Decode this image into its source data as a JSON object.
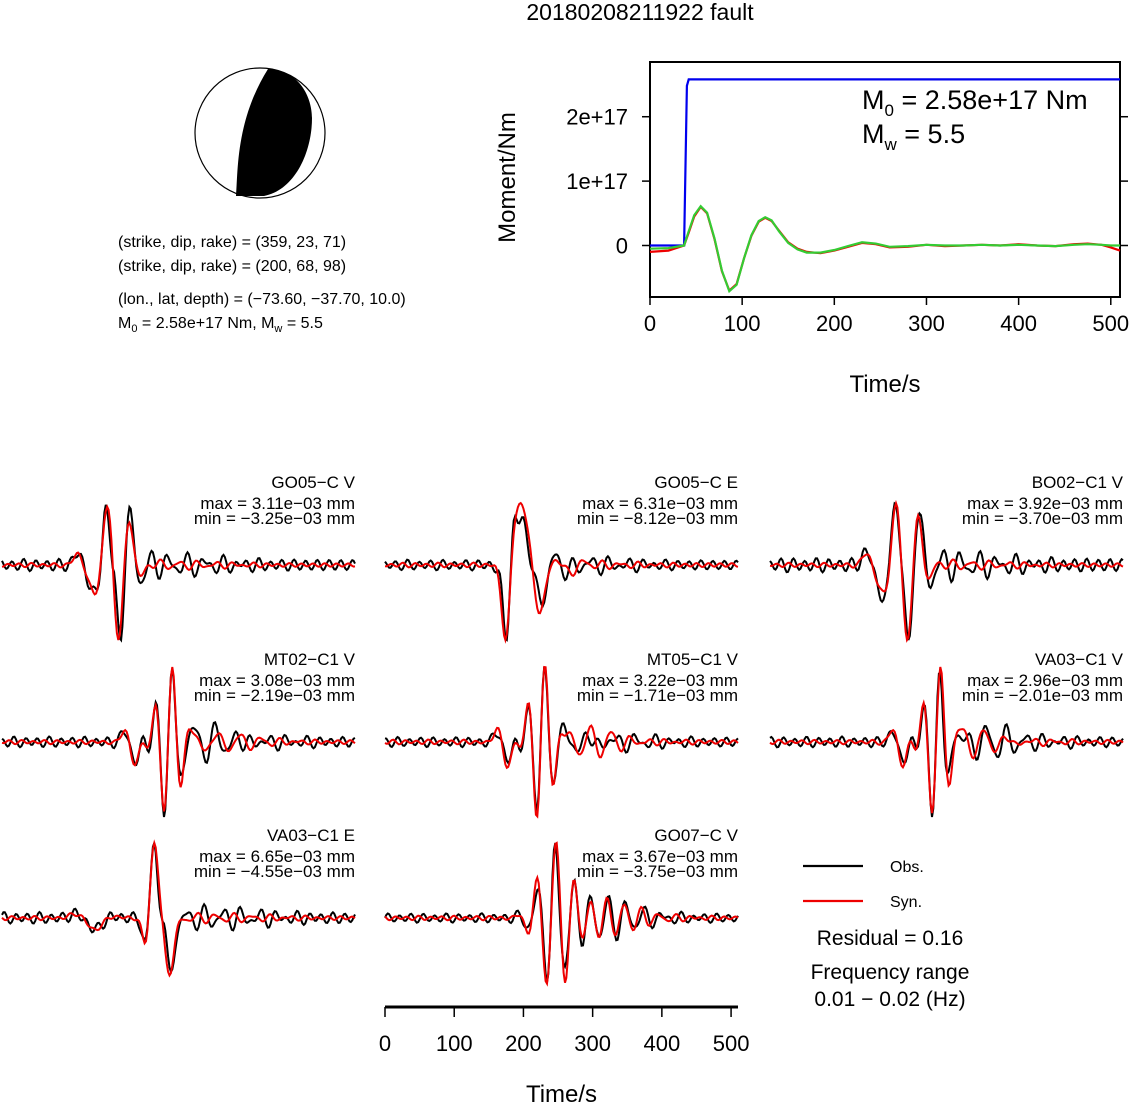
{
  "title": "20180208211922 fault",
  "mechanism": {
    "line1": "(strike, dip, rake) = (359, 23, 71)",
    "line2": "(strike, dip, rake) = (200, 68, 98)",
    "line3": "(lon., lat, depth) = (−73.60, −37.70, 10.0)",
    "line4_m0": "2.58e+17 Nm",
    "line4_mw": "5.5",
    "strike": 359,
    "dip": 23,
    "rake": 71,
    "colors": {
      "compression": "#000000",
      "dilatation": "#ffffff"
    }
  },
  "chart_data": [
    {
      "type": "line",
      "id": "moment-rate",
      "xlabel": "Time/s",
      "ylabel": "Moment/Nm",
      "xlim": [
        0,
        510
      ],
      "ylim": [
        -8e+16,
        2.85e+17
      ],
      "xticks": [
        0,
        100,
        200,
        300,
        400,
        500
      ],
      "yticks": [
        {
          "value": 0,
          "label": "0"
        },
        {
          "value": 1e+17,
          "label": "1e+17"
        },
        {
          "value": 2e+17,
          "label": "2e+17"
        }
      ],
      "annotation": {
        "m0_value": "2.58e+17 Nm",
        "mw_value": "5.5"
      },
      "series": [
        {
          "color": "#0000ee",
          "x": [
            0,
            37,
            40,
            42,
            510
          ],
          "y": [
            0,
            0,
            2.48e+17,
            2.58e+17,
            2.58e+17
          ]
        },
        {
          "color": "#ee0000",
          "x": [
            0,
            20,
            37,
            42,
            48,
            55,
            62,
            70,
            78,
            86,
            94,
            102,
            110,
            118,
            125,
            132,
            140,
            150,
            160,
            170,
            185,
            200,
            215,
            230,
            245,
            260,
            280,
            300,
            320,
            340,
            360,
            380,
            400,
            420,
            440,
            460,
            475,
            490,
            500,
            510
          ],
          "y": [
            -1e+16,
            -8000000000000000.0,
            0,
            2e+16,
            4.5e+16,
            6e+16,
            5e+16,
            1e+16,
            -4e+16,
            -7e+16,
            -6e+16,
            -2e+16,
            1.5e+16,
            3.7e+16,
            4.3e+16,
            3.8e+16,
            2.3e+16,
            5000000000000000.0,
            -5000000000000000.0,
            -1e+16,
            -1.2e+16,
            -8000000000000000.0,
            -2000000000000000.0,
            4000000000000000.0,
            2000000000000000.0,
            -3000000000000000.0,
            -2000000000000000.0,
            1000000000000000.0,
            -1000000000000000.0,
            0,
            1000000000000000.0,
            0,
            2000000000000000.0,
            0,
            -1000000000000000.0,
            2000000000000000.0,
            3000000000000000.0,
            1000000000000000.0,
            -3000000000000000.0,
            -8000000000000000.0
          ]
        },
        {
          "color": "#33cc33",
          "x": [
            0,
            20,
            37,
            42,
            48,
            55,
            62,
            70,
            78,
            86,
            94,
            102,
            110,
            118,
            125,
            132,
            140,
            150,
            160,
            170,
            185,
            200,
            215,
            230,
            245,
            260,
            280,
            300,
            320,
            340,
            360,
            380,
            400,
            420,
            440,
            460,
            475,
            490,
            500,
            510
          ],
          "y": [
            -5000000000000000.0,
            -4000000000000000.0,
            0,
            2.2e+16,
            4.7e+16,
            6.1e+16,
            5.1e+16,
            1.1e+16,
            -3.9e+16,
            -7.1e+16,
            -6.1e+16,
            -2e+16,
            1.6e+16,
            3.8e+16,
            4.4e+16,
            3.9e+16,
            2.2e+16,
            4000000000000000.0,
            -6000000000000000.0,
            -1.1e+16,
            -1.1e+16,
            -7000000000000000.0,
            -1000000000000000.0,
            5000000000000000.0,
            3000000000000000.0,
            -2000000000000000.0,
            -1000000000000000.0,
            1000000000000000.0,
            0,
            0,
            1000000000000000.0,
            0,
            1000000000000000.0,
            0,
            -1000000000000000.0,
            1000000000000000.0,
            2000000000000000.0,
            1000000000000000.0,
            0,
            0
          ]
        }
      ]
    },
    {
      "type": "line",
      "id": "waveforms",
      "xlabel": "Time/s",
      "xlim": [
        0,
        510
      ],
      "xticks": [
        0,
        100,
        200,
        300,
        400,
        500
      ],
      "legend": [
        {
          "name": "Obs.",
          "color": "#000000"
        },
        {
          "name": "Syn.",
          "color": "#ee0000"
        }
      ],
      "residual": "Residual = 0.16",
      "frequency_label": "Frequency range",
      "frequency_value": "0.01 − 0.02 (Hz)",
      "traces": [
        {
          "station": "GO05−C V",
          "max": "max = 3.11e−03 mm",
          "min": "min = −3.25e−03 mm",
          "t0": 160,
          "shape": "A",
          "seed": 1
        },
        {
          "station": "GO05−C E",
          "max": "max = 6.31e−03 mm",
          "min": "min = −8.12e−03 mm",
          "t0": 180,
          "shape": "B",
          "seed": 2
        },
        {
          "station": "BO02−C1 V",
          "max": "max = 3.92e−03 mm",
          "min": "min = −3.70e−03 mm",
          "t0": 190,
          "shape": "A",
          "seed": 3
        },
        {
          "station": "MT02−C1 V",
          "max": "max = 3.08e−03 mm",
          "min": "min = −2.19e−03 mm",
          "t0": 240,
          "shape": "C",
          "seed": 4
        },
        {
          "station": "MT05−C1 V",
          "max": "max = 3.22e−03 mm",
          "min": "min = −1.71e−03 mm",
          "t0": 225,
          "shape": "C",
          "seed": 5
        },
        {
          "station": "VA03−C1 V",
          "max": "max = 2.96e−03 mm",
          "min": "min = −2.01e−03 mm",
          "t0": 240,
          "shape": "C",
          "seed": 6
        },
        {
          "station": "VA03−C1 E",
          "max": "max = 6.65e−03 mm",
          "min": "min = −4.55e−03 mm",
          "t0": 230,
          "shape": "D",
          "seed": 7
        },
        {
          "station": "GO07−C V",
          "max": "max = 3.67e−03 mm",
          "min": "min = −3.75e−03 mm",
          "t0": 240,
          "shape": "E",
          "seed": 8
        }
      ]
    }
  ]
}
